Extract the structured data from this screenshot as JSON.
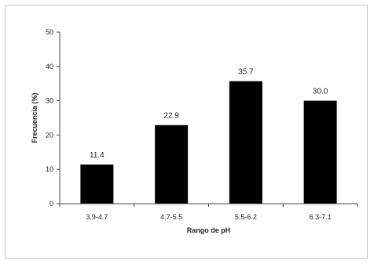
{
  "chart_data": {
    "type": "bar",
    "title": "",
    "xlabel": "Rango de pH",
    "ylabel": "Frecuencia (%)",
    "categories": [
      "3.9-4.7",
      "4.7-5.5",
      "5.5-6.2",
      "6.3-7.1"
    ],
    "values": [
      11.4,
      22.9,
      35.7,
      30.0
    ],
    "data_labels": [
      "11.4",
      "22.9",
      "35.7",
      "30.0"
    ],
    "ylim": [
      0,
      50
    ],
    "yticks": [
      0,
      10,
      20,
      30,
      40,
      50
    ],
    "grid": false,
    "legend": "none",
    "bar_color": "#000000",
    "axis_color": "#444444"
  }
}
